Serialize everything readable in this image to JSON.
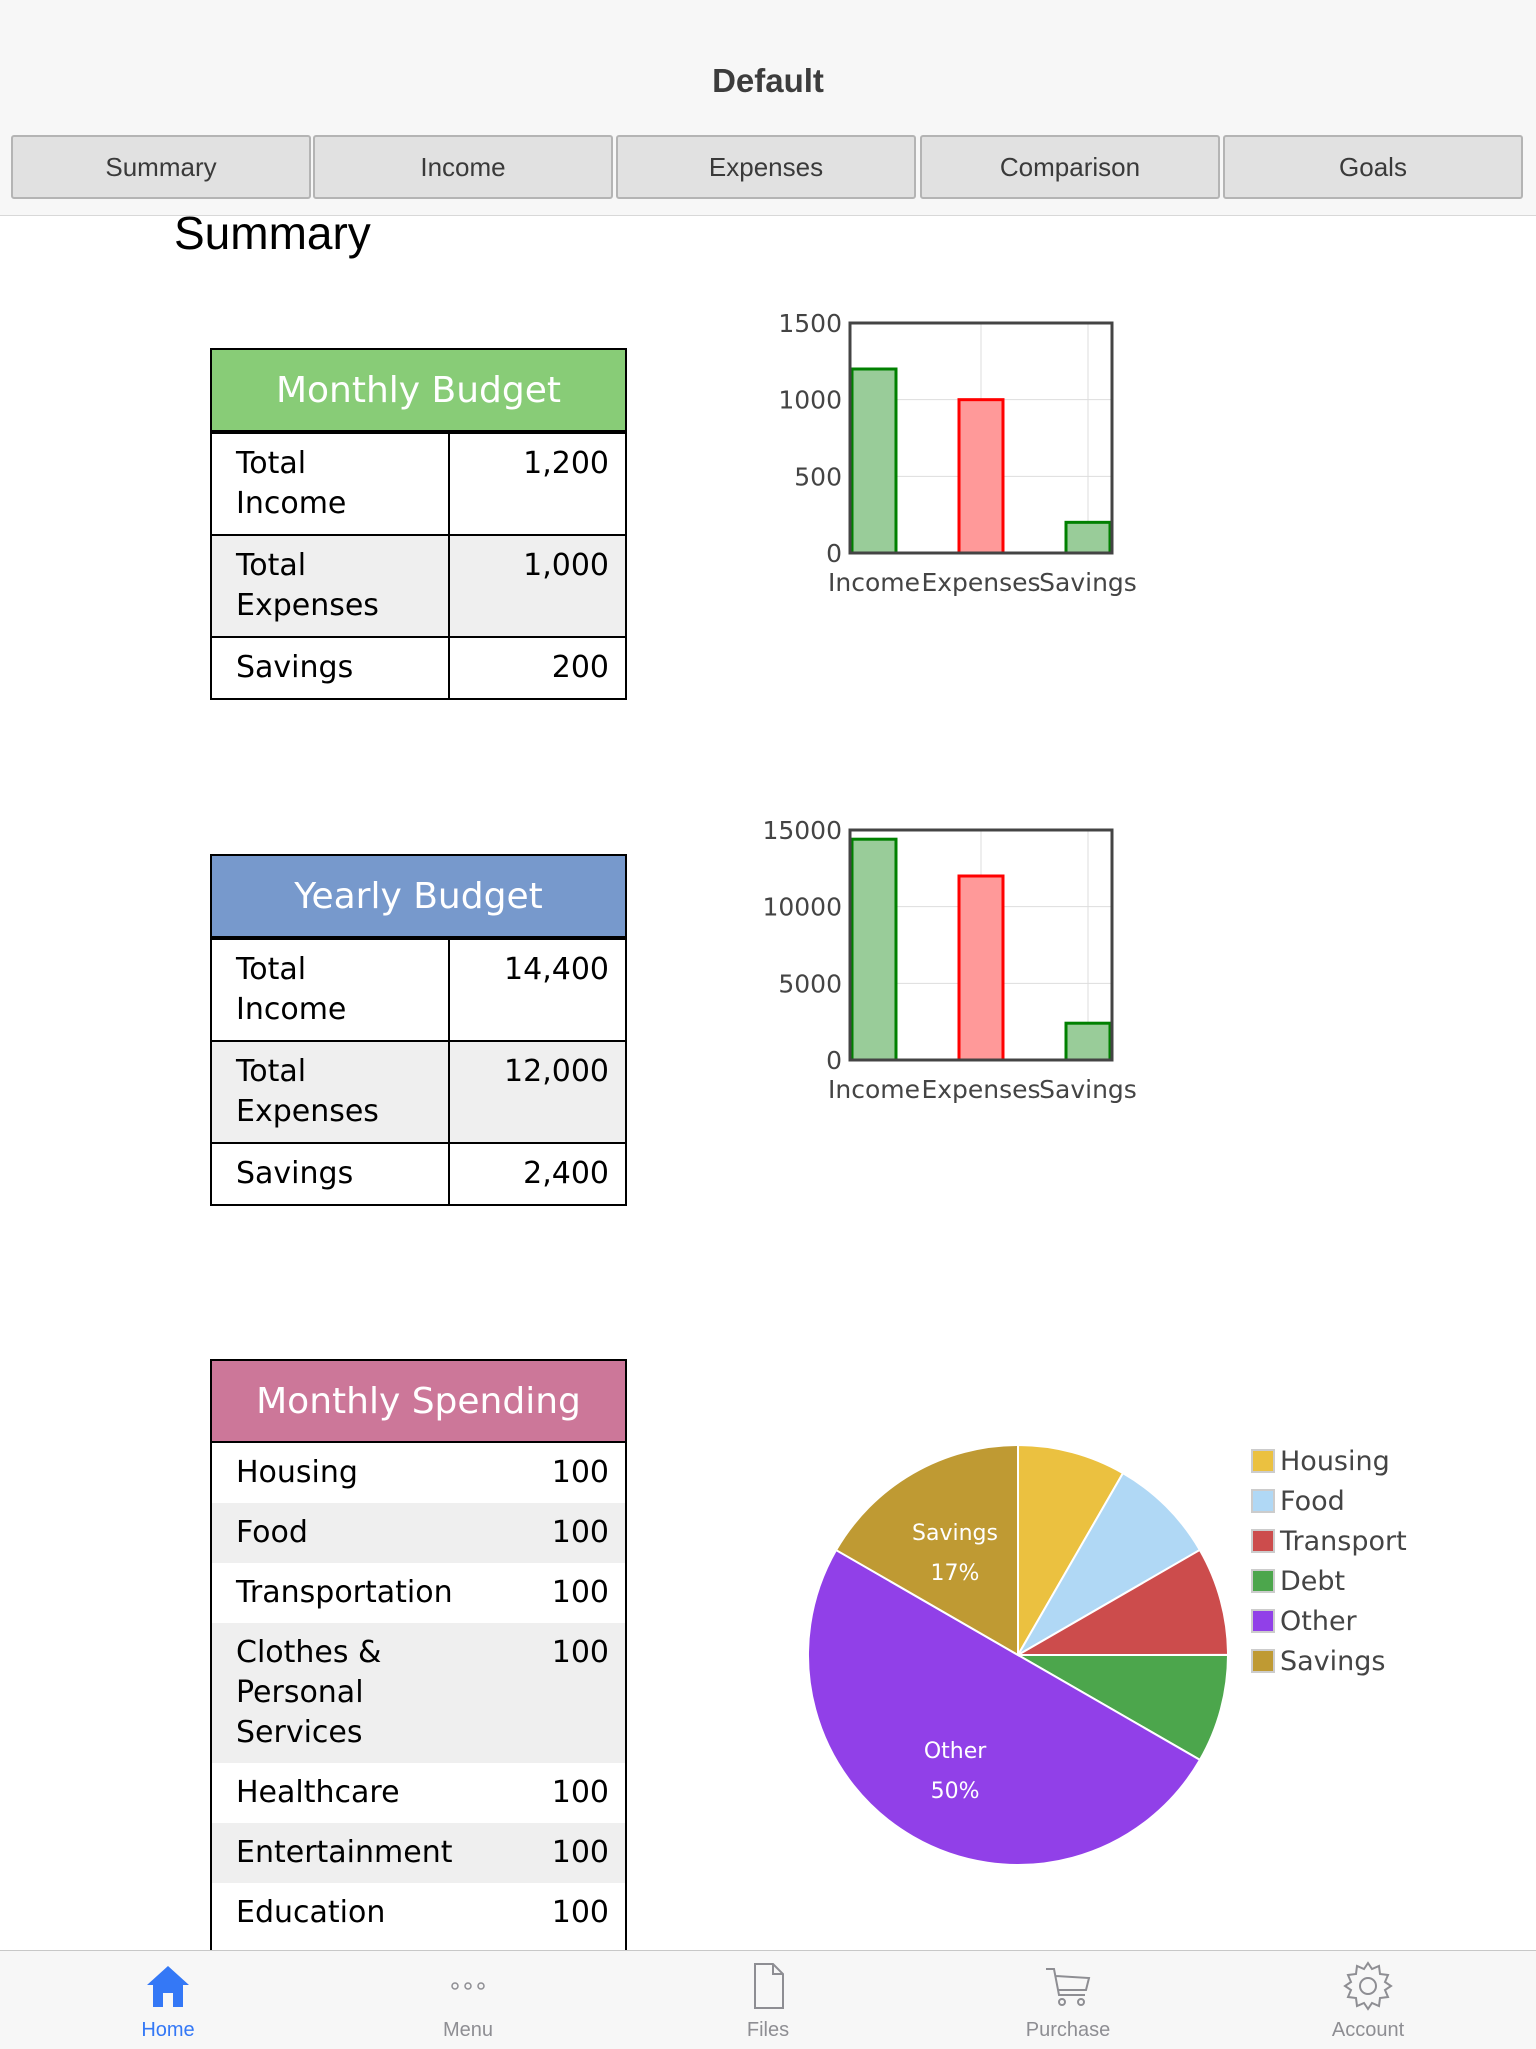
{
  "header": {
    "title": "Default"
  },
  "tabs": [
    {
      "label": "Summary"
    },
    {
      "label": "Income"
    },
    {
      "label": "Expenses"
    },
    {
      "label": "Comparison"
    },
    {
      "label": "Goals"
    }
  ],
  "page_title": "Summary",
  "monthly_budget": {
    "title": "Monthly Budget",
    "header_color": "#88cc77",
    "rows": [
      {
        "label": "Total Income",
        "value": "1,200"
      },
      {
        "label": "Total Expenses",
        "value": "1,000"
      },
      {
        "label": "Savings",
        "value": "200"
      }
    ]
  },
  "yearly_budget": {
    "title": "Yearly Budget",
    "header_color": "#7799cc",
    "rows": [
      {
        "label": "Total Income",
        "value": "14,400"
      },
      {
        "label": "Total Expenses",
        "value": "12,000"
      },
      {
        "label": "Savings",
        "value": "2,400"
      }
    ]
  },
  "monthly_spending": {
    "title": "Monthly Spending",
    "header_color": "#cc7799",
    "rows": [
      {
        "label": "Housing",
        "value": "100"
      },
      {
        "label": "Food",
        "value": "100"
      },
      {
        "label": "Transportation",
        "value": "100"
      },
      {
        "label": "Clothes & Personal Services",
        "value": "100"
      },
      {
        "label": "Healthcare",
        "value": "100"
      },
      {
        "label": "Entertainment",
        "value": "100"
      },
      {
        "label": "Education",
        "value": "100"
      }
    ]
  },
  "chart_data": [
    {
      "type": "bar",
      "categories": [
        "Income",
        "Expenses",
        "Savings"
      ],
      "values": [
        1200,
        1000,
        200
      ],
      "colors": [
        "#99cc99",
        "#ff9999",
        "#99cc99"
      ],
      "stroke_colors": [
        "#008000",
        "#ff0000",
        "#008000"
      ],
      "ylim": [
        0,
        1500
      ],
      "yticks": [
        "0",
        "500",
        "1000",
        "1500"
      ],
      "ytick_values": [
        0,
        500,
        1000,
        1500
      ],
      "grid": true
    },
    {
      "type": "bar",
      "categories": [
        "Income",
        "Expenses",
        "Savings"
      ],
      "values": [
        14400,
        12000,
        2400
      ],
      "colors": [
        "#99cc99",
        "#ff9999",
        "#99cc99"
      ],
      "stroke_colors": [
        "#008000",
        "#ff0000",
        "#008000"
      ],
      "ylim": [
        0,
        15000
      ],
      "yticks": [
        "0",
        "5000",
        "10000",
        "15000"
      ],
      "ytick_values": [
        0,
        5000,
        10000,
        15000
      ],
      "grid": true
    },
    {
      "type": "pie",
      "labels": [
        "Housing",
        "Food",
        "Transport",
        "Debt",
        "Other",
        "Savings"
      ],
      "values": [
        8.33,
        8.33,
        8.33,
        8.33,
        50,
        16.67
      ],
      "colors": [
        "#ebc140",
        "#b0d8f5",
        "#cc4c4c",
        "#4ca64c",
        "#9140e8",
        "#bf9a33"
      ],
      "slice_labels": [
        {
          "name": "Savings",
          "pct": "17%"
        },
        {
          "name": "Other",
          "pct": "50%"
        }
      ],
      "legend_position": "right"
    }
  ],
  "bottom_bar": [
    {
      "label": "Home",
      "icon": "home-icon",
      "active": true
    },
    {
      "label": "Menu",
      "icon": "more-icon",
      "active": false
    },
    {
      "label": "Files",
      "icon": "file-icon",
      "active": false
    },
    {
      "label": "Purchase",
      "icon": "cart-icon",
      "active": false
    },
    {
      "label": "Account",
      "icon": "gear-icon",
      "active": false
    }
  ],
  "colors": {
    "accent": "#3478f6",
    "inactive": "#8e8e93"
  }
}
